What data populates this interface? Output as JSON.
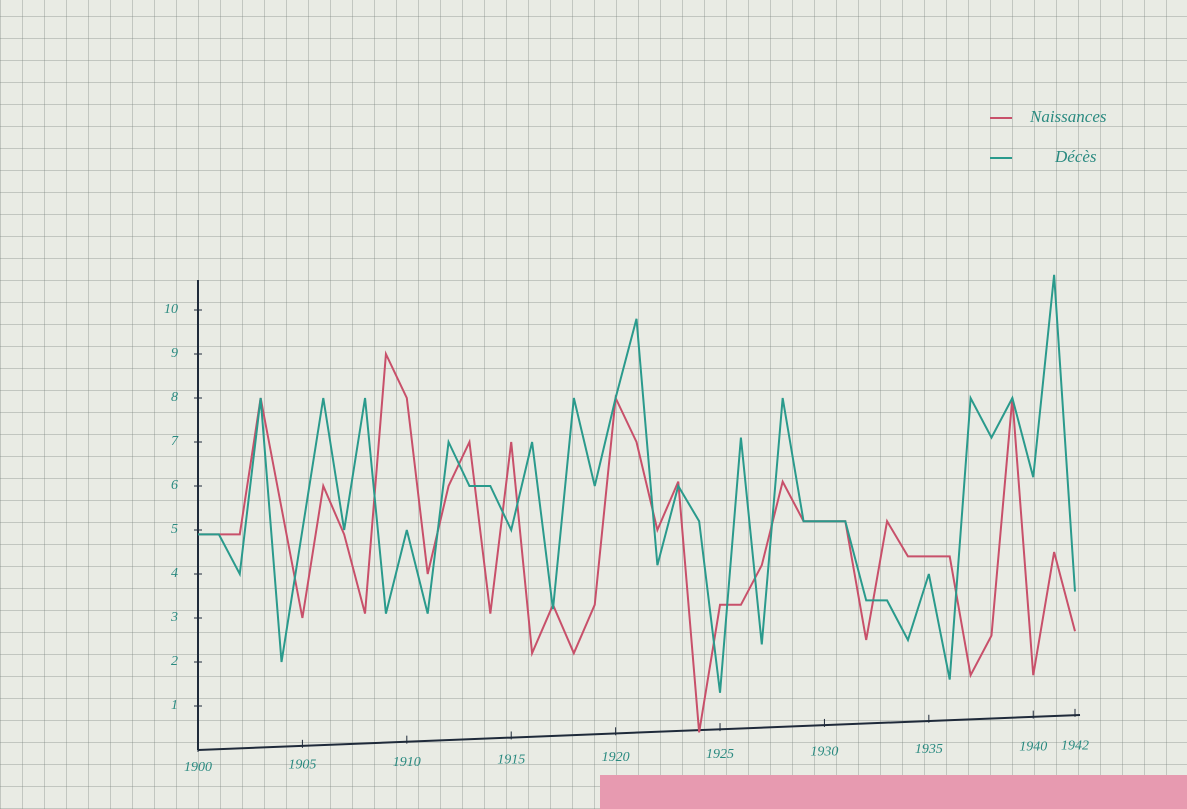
{
  "chart_data": {
    "type": "line",
    "x": [
      1900,
      1901,
      1902,
      1903,
      1904,
      1905,
      1906,
      1907,
      1908,
      1909,
      1910,
      1911,
      1912,
      1913,
      1914,
      1915,
      1916,
      1917,
      1918,
      1919,
      1920,
      1921,
      1922,
      1923,
      1924,
      1925,
      1926,
      1927,
      1928,
      1929,
      1930,
      1931,
      1932,
      1933,
      1934,
      1935,
      1936,
      1937,
      1938,
      1939,
      1940,
      1941,
      1942
    ],
    "series": [
      {
        "name": "Naissances",
        "color": "#c8506a",
        "values": [
          4.9,
          4.9,
          4.9,
          8,
          5.5,
          3,
          6,
          4.9,
          3.1,
          9,
          8,
          4,
          6,
          7,
          3.1,
          7,
          2.2,
          3.3,
          2.2,
          3.3,
          8,
          7,
          5,
          6.1,
          0.4,
          3.3,
          3.3,
          4.2,
          6.1,
          5.2,
          5.2,
          5.2,
          2.5,
          5.2,
          4.4,
          4.4,
          4.4,
          1.7,
          2.6,
          8,
          1.7,
          4.5,
          2.7
        ]
      },
      {
        "name": "Décès",
        "color": "#2a9a8c",
        "values": [
          4.9,
          4.9,
          4,
          8,
          2,
          5,
          8,
          5,
          8,
          3.1,
          5,
          3.1,
          7,
          6,
          6,
          5,
          7,
          3.2,
          8,
          6,
          8,
          9.8,
          4.2,
          6,
          5.2,
          1.3,
          7.1,
          2.4,
          8,
          5.2,
          5.2,
          5.2,
          3.4,
          3.4,
          2.5,
          4,
          1.6,
          8,
          7.1,
          8,
          6.2,
          10.8,
          3.6
        ]
      }
    ],
    "xlim": [
      1900,
      1942
    ],
    "xticks": [
      1900,
      1905,
      1910,
      1915,
      1920,
      1925,
      1930,
      1935,
      1940,
      1942
    ],
    "ylim": [
      0,
      11
    ],
    "yticks": [
      1,
      2,
      3,
      4,
      5,
      6,
      7,
      8,
      9,
      10
    ],
    "legend": "top-right"
  }
}
